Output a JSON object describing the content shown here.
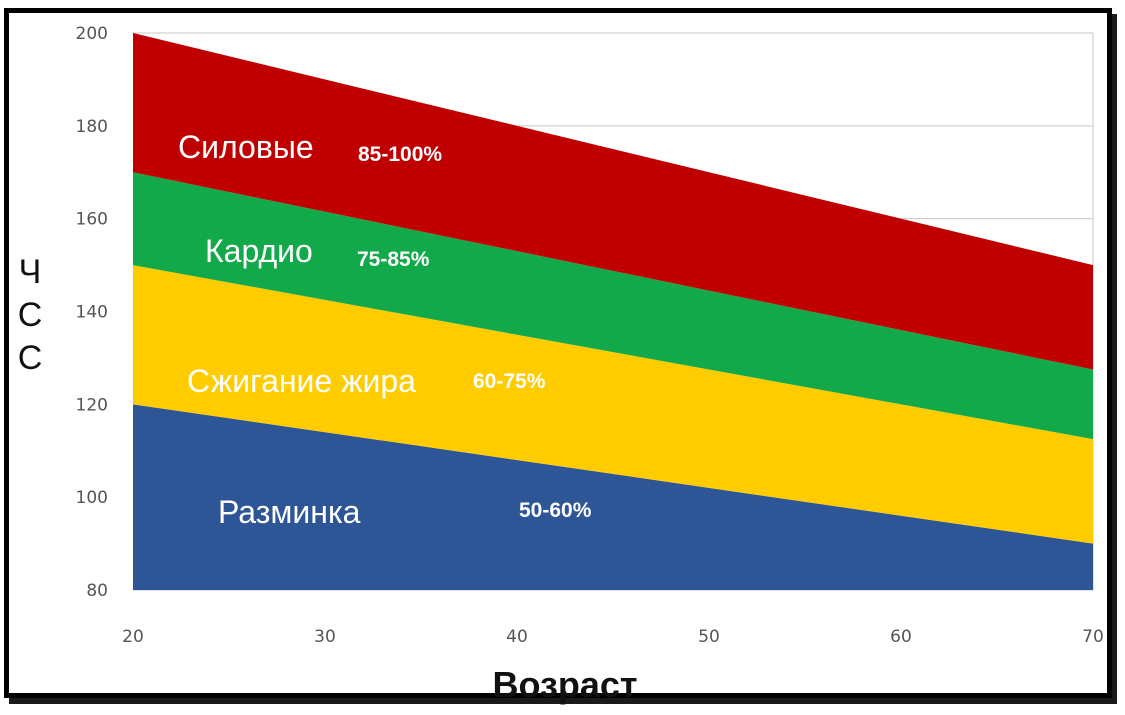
{
  "chart_data": {
    "type": "area",
    "title": "",
    "xlabel": "Возраст",
    "ylabel": [
      "Ч",
      "С",
      "С"
    ],
    "xlim": [
      20,
      70
    ],
    "ylim": [
      80,
      200
    ],
    "x_ticks": [
      20,
      30,
      40,
      50,
      60,
      70
    ],
    "y_ticks": [
      80,
      100,
      120,
      140,
      160,
      180,
      200
    ],
    "grid": "horizontal",
    "x": [
      20,
      70
    ],
    "max_hr": [
      200,
      150
    ],
    "bands": [
      {
        "name": "Разминка",
        "range": "50-60%",
        "color": "#2e5596",
        "lower": [
          80,
          80
        ],
        "upper": [
          120,
          90
        ]
      },
      {
        "name": "Сжигание жира",
        "range": "60-75%",
        "color": "#ffcc00",
        "lower": [
          120,
          90
        ],
        "upper": [
          150,
          112.5
        ]
      },
      {
        "name": "Кардио",
        "range": "75-85%",
        "color": "#12a94b",
        "lower": [
          150,
          112.5
        ],
        "upper": [
          170,
          127.5
        ]
      },
      {
        "name": "Силовые",
        "range": "85-100%",
        "color": "#c00000",
        "lower": [
          170,
          127.5
        ],
        "upper": [
          200,
          150
        ]
      }
    ]
  }
}
